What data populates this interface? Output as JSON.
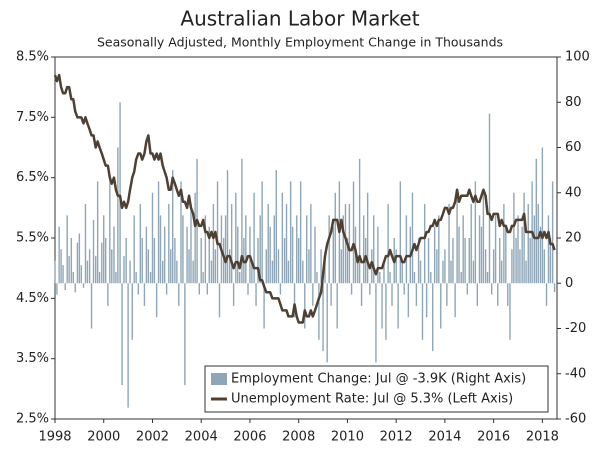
{
  "chart_data": {
    "type": "bar_line",
    "title": "Australian Labor Market",
    "subtitle": "Seasonally Adjusted, Monthly Employment Change in Thousands",
    "xlim": [
      1998,
      2018.6
    ],
    "xticks": [
      1998,
      2000,
      2002,
      2004,
      2006,
      2008,
      2010,
      2012,
      2014,
      2016,
      2018
    ],
    "ylim": [
      2.5,
      8.5
    ],
    "yticks": [
      {
        "value": 2.5,
        "label": "2.5%"
      },
      {
        "value": 3.5,
        "label": "3.5%"
      },
      {
        "value": 4.5,
        "label": "4.5%"
      },
      {
        "value": 5.5,
        "label": "5.5%"
      },
      {
        "value": 6.5,
        "label": "6.5%"
      },
      {
        "value": 7.5,
        "label": "7.5%"
      },
      {
        "value": 8.5,
        "label": "8.5%"
      }
    ],
    "y2lim": [
      -60,
      100
    ],
    "y2ticks": [
      100,
      80,
      60,
      40,
      20,
      0,
      -20,
      -40,
      -60
    ],
    "legend": "bottom-right",
    "x": [
      1998,
      1998.08,
      1998.17,
      1998.25,
      1998.33,
      1998.42,
      1998.5,
      1998.58,
      1998.67,
      1998.75,
      1998.83,
      1998.92,
      1999,
      1999.08,
      1999.17,
      1999.25,
      1999.33,
      1999.42,
      1999.5,
      1999.58,
      1999.67,
      1999.75,
      1999.83,
      1999.92,
      2000,
      2000.08,
      2000.17,
      2000.25,
      2000.33,
      2000.42,
      2000.5,
      2000.58,
      2000.67,
      2000.75,
      2000.83,
      2000.92,
      2001,
      2001.08,
      2001.17,
      2001.25,
      2001.33,
      2001.42,
      2001.5,
      2001.58,
      2001.67,
      2001.75,
      2001.83,
      2001.92,
      2002,
      2002.08,
      2002.17,
      2002.25,
      2002.33,
      2002.42,
      2002.5,
      2002.58,
      2002.67,
      2002.75,
      2002.83,
      2002.92,
      2003,
      2003.08,
      2003.17,
      2003.25,
      2003.33,
      2003.42,
      2003.5,
      2003.58,
      2003.67,
      2003.75,
      2003.83,
      2003.92,
      2004,
      2004.08,
      2004.17,
      2004.25,
      2004.33,
      2004.42,
      2004.5,
      2004.58,
      2004.67,
      2004.75,
      2004.83,
      2004.92,
      2005,
      2005.08,
      2005.17,
      2005.25,
      2005.33,
      2005.42,
      2005.5,
      2005.58,
      2005.67,
      2005.75,
      2005.83,
      2005.92,
      2006,
      2006.08,
      2006.17,
      2006.25,
      2006.33,
      2006.42,
      2006.5,
      2006.58,
      2006.67,
      2006.75,
      2006.83,
      2006.92,
      2007,
      2007.08,
      2007.17,
      2007.25,
      2007.33,
      2007.42,
      2007.5,
      2007.58,
      2007.67,
      2007.75,
      2007.83,
      2007.92,
      2008,
      2008.08,
      2008.17,
      2008.25,
      2008.33,
      2008.42,
      2008.5,
      2008.58,
      2008.67,
      2008.75,
      2008.83,
      2008.92,
      2009,
      2009.08,
      2009.17,
      2009.25,
      2009.33,
      2009.42,
      2009.5,
      2009.58,
      2009.67,
      2009.75,
      2009.83,
      2009.92,
      2010,
      2010.08,
      2010.17,
      2010.25,
      2010.33,
      2010.42,
      2010.5,
      2010.58,
      2010.67,
      2010.75,
      2010.83,
      2010.92,
      2011,
      2011.08,
      2011.17,
      2011.25,
      2011.33,
      2011.42,
      2011.5,
      2011.58,
      2011.67,
      2011.75,
      2011.83,
      2011.92,
      2012,
      2012.08,
      2012.17,
      2012.25,
      2012.33,
      2012.42,
      2012.5,
      2012.58,
      2012.67,
      2012.75,
      2012.83,
      2012.92,
      2013,
      2013.08,
      2013.17,
      2013.25,
      2013.33,
      2013.42,
      2013.5,
      2013.58,
      2013.67,
      2013.75,
      2013.83,
      2013.92,
      2014,
      2014.08,
      2014.17,
      2014.25,
      2014.33,
      2014.42,
      2014.5,
      2014.58,
      2014.67,
      2014.75,
      2014.83,
      2014.92,
      2015,
      2015.08,
      2015.17,
      2015.25,
      2015.33,
      2015.42,
      2015.5,
      2015.58,
      2015.67,
      2015.75,
      2015.83,
      2015.92,
      2016,
      2016.08,
      2016.17,
      2016.25,
      2016.33,
      2016.42,
      2016.5,
      2016.58,
      2016.67,
      2016.75,
      2016.83,
      2016.92,
      2017,
      2017.08,
      2017.17,
      2017.25,
      2017.33,
      2017.42,
      2017.5,
      2017.58,
      2017.67,
      2017.75,
      2017.83,
      2017.92,
      2018,
      2018.08,
      2018.17,
      2018.25,
      2018.33,
      2018.42,
      2018.5
    ],
    "series": [
      {
        "name": "Employment Change: Jul @ -3.9K (Right Axis)",
        "type": "bar",
        "axis": "y2",
        "color": "#8ea6b8",
        "values": [
          10,
          -5,
          25,
          15,
          8,
          -3,
          30,
          12,
          20,
          5,
          -4,
          18,
          22,
          8,
          -2,
          35,
          10,
          15,
          -20,
          28,
          12,
          45,
          5,
          18,
          30,
          20,
          -10,
          48,
          15,
          25,
          5,
          60,
          80,
          -45,
          12,
          20,
          -55,
          10,
          -25,
          30,
          5,
          -5,
          35,
          20,
          -10,
          25,
          15,
          5,
          40,
          20,
          -15,
          45,
          30,
          10,
          25,
          -5,
          35,
          15,
          50,
          20,
          10,
          -10,
          45,
          30,
          -45,
          25,
          15,
          35,
          10,
          40,
          55,
          -5,
          20,
          5,
          30,
          -5,
          25,
          10,
          35,
          15,
          45,
          -15,
          30,
          20,
          30,
          50,
          15,
          35,
          -10,
          40,
          25,
          5,
          55,
          20,
          30,
          -5,
          25,
          10,
          40,
          -10,
          20,
          30,
          45,
          -20,
          15,
          35,
          25,
          10,
          30,
          50,
          15,
          -5,
          40,
          20,
          35,
          10,
          45,
          25,
          -15,
          30,
          20,
          45,
          10,
          -20,
          30,
          15,
          35,
          -10,
          25,
          5,
          -25,
          15,
          -30,
          10,
          -35,
          30,
          -10,
          25,
          40,
          -20,
          45,
          15,
          30,
          35,
          20,
          35,
          -5,
          45,
          25,
          10,
          55,
          -10,
          30,
          20,
          40,
          -5,
          15,
          30,
          -35,
          25,
          5,
          -20,
          10,
          -25,
          35,
          5,
          -10,
          20,
          15,
          -20,
          45,
          10,
          -5,
          30,
          -15,
          25,
          40,
          5,
          -10,
          20,
          10,
          -25,
          35,
          -15,
          20,
          5,
          -30,
          25,
          15,
          30,
          -20,
          10,
          15,
          -10,
          35,
          10,
          20,
          -15,
          40,
          25,
          5,
          30,
          20,
          -5,
          20,
          35,
          10,
          45,
          -10,
          30,
          25,
          40,
          15,
          5,
          75,
          -5,
          15,
          30,
          -10,
          20,
          10,
          35,
          25,
          -10,
          -25,
          15,
          40,
          20,
          30,
          15,
          25,
          40,
          10,
          35,
          20,
          45,
          30,
          55,
          35,
          25,
          60,
          15,
          -10,
          30,
          20,
          45,
          -3.9
        ]
      },
      {
        "name": "Unemployment Rate: Jul @ 5.3% (Left Axis)",
        "type": "line",
        "axis": "y",
        "color": "#4e4032",
        "values": [
          8.2,
          8.1,
          8.2,
          8.0,
          7.9,
          7.9,
          8.0,
          8.0,
          7.8,
          7.8,
          7.6,
          7.5,
          7.5,
          7.5,
          7.4,
          7.5,
          7.4,
          7.3,
          7.2,
          7.2,
          7.0,
          7.1,
          7.0,
          6.9,
          6.8,
          6.7,
          6.7,
          6.5,
          6.4,
          6.5,
          6.3,
          6.2,
          6.2,
          6.0,
          6.1,
          6.0,
          6.1,
          6.3,
          6.5,
          6.6,
          6.8,
          6.9,
          6.9,
          6.8,
          6.9,
          7.1,
          7.2,
          6.9,
          6.9,
          6.8,
          6.9,
          6.8,
          6.9,
          6.7,
          6.6,
          6.5,
          6.3,
          6.3,
          6.5,
          6.4,
          6.3,
          6.2,
          6.3,
          6.1,
          6.1,
          6.0,
          6.2,
          6.0,
          5.9,
          5.7,
          5.8,
          5.7,
          5.7,
          5.8,
          5.6,
          5.6,
          5.5,
          5.6,
          5.5,
          5.6,
          5.4,
          5.4,
          5.3,
          5.2,
          5.1,
          5.2,
          5.2,
          5.1,
          5.0,
          5.1,
          5.1,
          5.0,
          5.2,
          5.1,
          5.1,
          5.2,
          5.2,
          5.1,
          5.0,
          5.0,
          5.0,
          4.8,
          4.8,
          4.7,
          4.6,
          4.6,
          4.6,
          4.5,
          4.5,
          4.5,
          4.5,
          4.4,
          4.3,
          4.3,
          4.3,
          4.2,
          4.2,
          4.2,
          4.4,
          4.2,
          4.1,
          4.1,
          4.1,
          4.3,
          4.2,
          4.2,
          4.3,
          4.2,
          4.3,
          4.4,
          4.5,
          4.6,
          4.9,
          5.2,
          5.4,
          5.5,
          5.6,
          5.8,
          5.8,
          5.8,
          5.6,
          5.8,
          5.6,
          5.5,
          5.4,
          5.3,
          5.3,
          5.4,
          5.3,
          5.1,
          5.2,
          5.1,
          5.1,
          5.2,
          5.1,
          5.0,
          5.1,
          5.0,
          4.9,
          5.0,
          5.0,
          5.0,
          5.1,
          5.2,
          5.2,
          5.3,
          5.2,
          5.1,
          5.2,
          5.2,
          5.2,
          5.1,
          5.1,
          5.2,
          5.2,
          5.2,
          5.3,
          5.4,
          5.3,
          5.4,
          5.5,
          5.5,
          5.5,
          5.6,
          5.6,
          5.7,
          5.7,
          5.8,
          5.7,
          5.8,
          5.8,
          5.9,
          6.0,
          6.0,
          5.9,
          6.0,
          6.0,
          6.1,
          6.3,
          6.1,
          6.2,
          6.2,
          6.2,
          6.2,
          6.3,
          6.2,
          6.1,
          6.2,
          6.1,
          6.1,
          6.2,
          6.3,
          6.2,
          5.9,
          5.9,
          5.8,
          5.9,
          5.9,
          5.9,
          5.7,
          5.8,
          5.7,
          5.7,
          5.6,
          5.6,
          5.7,
          5.7,
          5.8,
          5.8,
          5.8,
          5.8,
          5.9,
          5.6,
          5.6,
          5.6,
          5.6,
          5.5,
          5.5,
          5.5,
          5.6,
          5.5,
          5.6,
          5.5,
          5.6,
          5.4,
          5.4,
          5.3
        ]
      }
    ]
  }
}
